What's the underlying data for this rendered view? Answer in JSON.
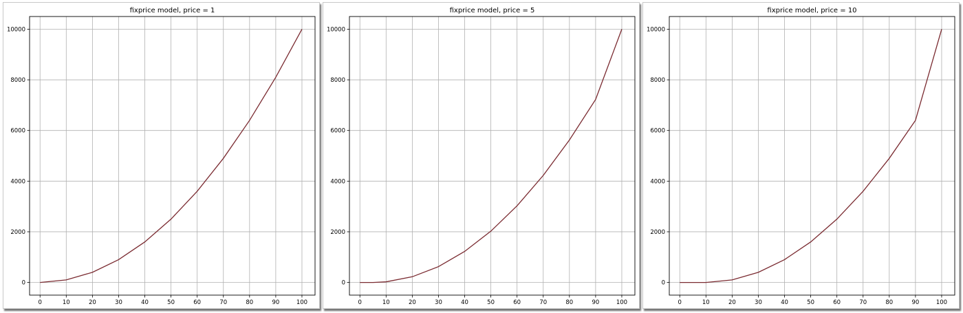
{
  "colors": {
    "line": "#7a2a30",
    "grid": "#b0b0b0"
  },
  "chart_data": [
    {
      "type": "line",
      "title": "fixprice model, price = 1",
      "xlabel": "",
      "ylabel": "",
      "xlim": [
        -4,
        105
      ],
      "ylim": [
        -500,
        10500
      ],
      "xticks": [
        0,
        10,
        20,
        30,
        40,
        50,
        60,
        70,
        80,
        90,
        100
      ],
      "yticks": [
        0,
        2000,
        4000,
        6000,
        8000,
        10000
      ],
      "grid": true,
      "series": [
        {
          "x": [
            0,
            10,
            20,
            30,
            40,
            50,
            60,
            70,
            80,
            90,
            100
          ],
          "values": [
            0,
            100,
            400,
            900,
            1600,
            2500,
            3600,
            4900,
            6400,
            8100,
            10000
          ]
        }
      ]
    },
    {
      "type": "line",
      "title": "fixprice model, price = 5",
      "xlabel": "",
      "ylabel": "",
      "xlim": [
        -4,
        105
      ],
      "ylim": [
        -500,
        10500
      ],
      "xticks": [
        0,
        10,
        20,
        30,
        40,
        50,
        60,
        70,
        80,
        90,
        100
      ],
      "yticks": [
        0,
        2000,
        4000,
        6000,
        8000,
        10000
      ],
      "grid": true,
      "series": [
        {
          "x": [
            0,
            5,
            10,
            20,
            30,
            40,
            50,
            60,
            70,
            80,
            90,
            100
          ],
          "values": [
            0,
            0,
            25,
            225,
            625,
            1225,
            2025,
            3025,
            4225,
            5625,
            7225,
            10000
          ]
        }
      ]
    },
    {
      "type": "line",
      "title": "fixprice model, price = 10",
      "xlabel": "",
      "ylabel": "",
      "xlim": [
        -4,
        105
      ],
      "ylim": [
        -500,
        10500
      ],
      "xticks": [
        0,
        10,
        20,
        30,
        40,
        50,
        60,
        70,
        80,
        90,
        100
      ],
      "yticks": [
        0,
        2000,
        4000,
        6000,
        8000,
        10000
      ],
      "grid": true,
      "series": [
        {
          "x": [
            0,
            5,
            10,
            20,
            30,
            40,
            50,
            60,
            70,
            80,
            90,
            100
          ],
          "values": [
            0,
            0,
            0,
            100,
            400,
            900,
            1600,
            2500,
            3600,
            4900,
            6400,
            10000
          ]
        }
      ]
    }
  ]
}
